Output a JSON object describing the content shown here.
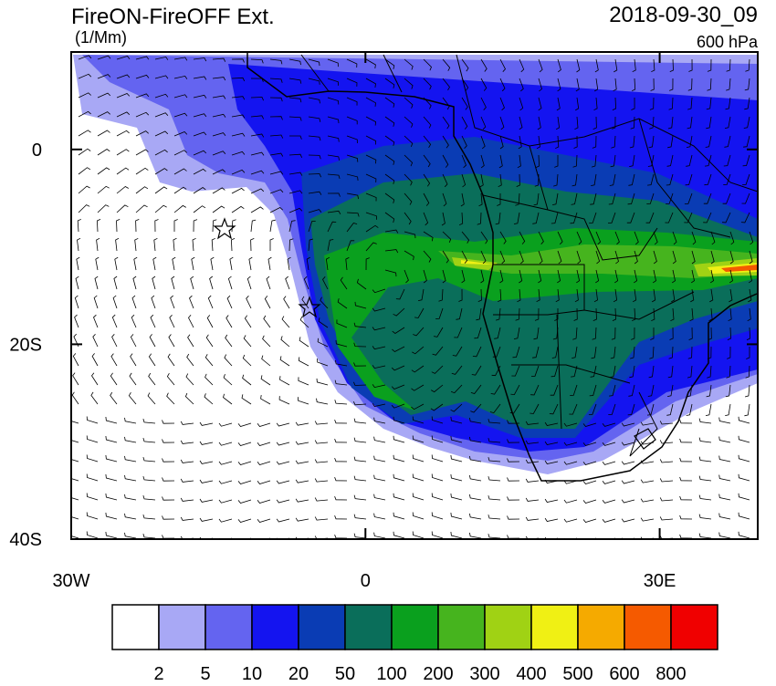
{
  "chart_data": {
    "type": "map",
    "title": "FireON-FireOFF Ext.",
    "units": "(1/Mm)",
    "time": "2018-09-30_09",
    "level": "600 hPa",
    "xlim": [
      -30,
      40
    ],
    "ylim": [
      -40,
      10
    ],
    "xticks": [
      {
        "value": -30,
        "label": "30W"
      },
      0,
      {
        "value": 30,
        "label": "30E"
      }
    ],
    "yticks": [
      0,
      {
        "value": -20,
        "label": "20S"
      },
      {
        "value": -40,
        "label": "40S"
      }
    ],
    "colorbar": {
      "levels": [
        2,
        5,
        10,
        20,
        50,
        100,
        200,
        300,
        400,
        500,
        600,
        800
      ],
      "colors": [
        "#ffffff",
        "#a8a8f5",
        "#6464f0",
        "#1414f0",
        "#0a3cb4",
        "#0a6e5a",
        "#0aa01e",
        "#46b41e",
        "#a0d214",
        "#f0f014",
        "#f5aa00",
        "#f55a00",
        "#f00000"
      ]
    }
  }
}
